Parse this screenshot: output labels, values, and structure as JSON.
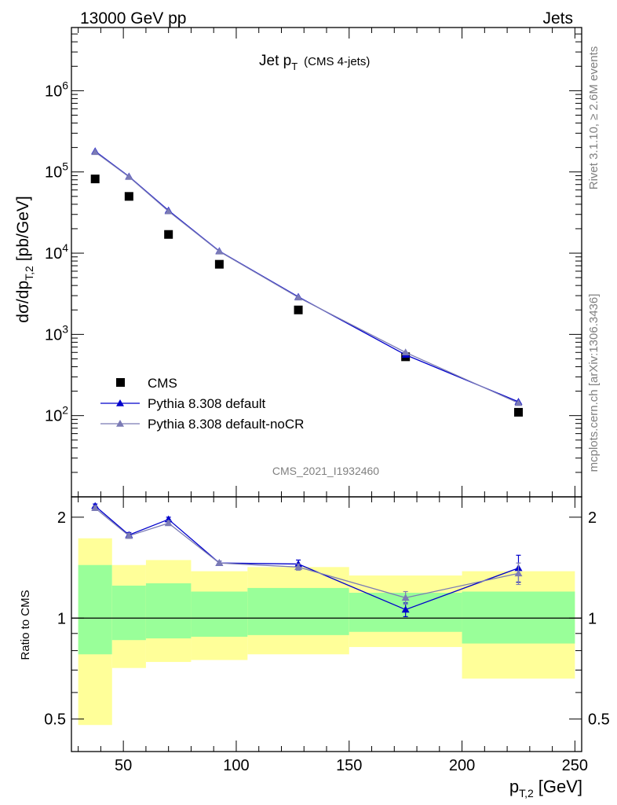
{
  "header": {
    "left": "13000 GeV pp",
    "right": "Jets"
  },
  "plot_title_main": "Jet p",
  "plot_title_sub": "T",
  "plot_title_note": "(CMS 4-jets)",
  "y_label": {
    "main": "dσ/dp",
    "sub": "T,2",
    "unit": "[pb/GeV]"
  },
  "x_label": {
    "main": "p",
    "sub": "T,2",
    "unit": "[GeV]"
  },
  "ratio_label": "Ratio to CMS",
  "side_text": {
    "rivet": "Rivet 3.1.10, ≥ 2.6M events",
    "mcplots": "mcplots.cern.ch [arXiv:1306.3436]"
  },
  "analysis_id": "CMS_2021_I1932460",
  "legend": [
    {
      "label": "CMS",
      "color": "#000000",
      "marker": "square"
    },
    {
      "label": "Pythia 8.308 default",
      "color": "#0000cc",
      "marker": "triangle"
    },
    {
      "label": "Pythia 8.308 default-noCR",
      "color": "#7b7bb5",
      "marker": "triangle"
    }
  ],
  "chart_data": [
    {
      "type": "scatter",
      "panel": "main",
      "xlim": [
        27,
        253
      ],
      "ylim": [
        10,
        6000000
      ],
      "y_scale": "log",
      "x_ticks": [
        50,
        100,
        150,
        200,
        250
      ],
      "y_ticks": [
        {
          "value": 100,
          "base": "10",
          "exp": "2"
        },
        {
          "value": 1000,
          "base": "10",
          "exp": "3"
        },
        {
          "value": 10000,
          "base": "10",
          "exp": "4"
        },
        {
          "value": 100000,
          "base": "10",
          "exp": "5"
        },
        {
          "value": 1000000,
          "base": "10",
          "exp": "6"
        }
      ],
      "bins": [
        [
          30,
          45
        ],
        [
          45,
          60
        ],
        [
          60,
          80
        ],
        [
          80,
          105
        ],
        [
          105,
          150
        ],
        [
          150,
          200
        ],
        [
          200,
          250
        ]
      ],
      "series": [
        {
          "name": "CMS",
          "color": "#000000",
          "x": [
            37.5,
            52.5,
            70,
            92.5,
            127.5,
            175,
            225
          ],
          "y": [
            82000,
            50000,
            17000,
            7300,
            2000,
            530,
            110
          ]
        },
        {
          "name": "Pythia 8.308 default",
          "color": "#0000cc",
          "x": [
            37.5,
            52.5,
            70,
            92.5,
            127.5,
            175,
            225
          ],
          "y": [
            180000,
            88000,
            33500,
            10600,
            2900,
            560,
            148
          ],
          "yerr": [
            3000,
            1500,
            600,
            200,
            60,
            20,
            10
          ]
        },
        {
          "name": "Pythia 8.308 default-noCR",
          "color": "#7b7bb5",
          "x": [
            37.5,
            52.5,
            70,
            92.5,
            127.5,
            175,
            225
          ],
          "y": [
            176000,
            87000,
            32800,
            10500,
            2850,
            600,
            143
          ],
          "yerr": [
            3000,
            1500,
            600,
            200,
            60,
            20,
            10
          ]
        }
      ]
    },
    {
      "type": "scatter",
      "panel": "ratio",
      "ylabel": "Ratio to CMS",
      "xlim": [
        27,
        253
      ],
      "ylim": [
        0.4,
        2.3
      ],
      "y_scale": "log",
      "y_ticks": [
        {
          "value": 0.5,
          "label": "0.5"
        },
        {
          "value": 1,
          "label": "1"
        },
        {
          "value": 2,
          "label": "2"
        }
      ],
      "reference": 1,
      "bands": {
        "inner_color": "#99ff99",
        "outer_color": "#ffff99",
        "bins": [
          {
            "x0": 30,
            "x1": 45,
            "inner": [
              0.78,
              1.44
            ],
            "outer": [
              0.48,
              1.73
            ]
          },
          {
            "x0": 45,
            "x1": 60,
            "inner": [
              0.86,
              1.25
            ],
            "outer": [
              0.71,
              1.44
            ]
          },
          {
            "x0": 60,
            "x1": 80,
            "inner": [
              0.87,
              1.27
            ],
            "outer": [
              0.74,
              1.49
            ]
          },
          {
            "x0": 80,
            "x1": 105,
            "inner": [
              0.88,
              1.2
            ],
            "outer": [
              0.75,
              1.38
            ]
          },
          {
            "x0": 105,
            "x1": 150,
            "inner": [
              0.89,
              1.23
            ],
            "outer": [
              0.78,
              1.42
            ]
          },
          {
            "x0": 150,
            "x1": 200,
            "inner": [
              0.91,
              1.19
            ],
            "outer": [
              0.82,
              1.34
            ]
          },
          {
            "x0": 200,
            "x1": 250,
            "inner": [
              0.84,
              1.2
            ],
            "outer": [
              0.66,
              1.38
            ]
          }
        ]
      },
      "series": [
        {
          "name": "Pythia 8.308 default",
          "color": "#0000cc",
          "x": [
            37.5,
            52.5,
            70,
            92.5,
            127.5,
            175,
            225
          ],
          "y": [
            2.16,
            1.77,
            1.97,
            1.46,
            1.45,
            1.06,
            1.41
          ],
          "yerr": [
            0.03,
            0.03,
            0.03,
            0.02,
            0.04,
            0.05,
            0.13
          ]
        },
        {
          "name": "Pythia 8.308 default-noCR",
          "color": "#7b7bb5",
          "x": [
            37.5,
            52.5,
            70,
            92.5,
            127.5,
            175,
            225
          ],
          "y": [
            2.13,
            1.76,
            1.92,
            1.46,
            1.42,
            1.15,
            1.36
          ],
          "yerr": [
            0.03,
            0.03,
            0.03,
            0.02,
            0.03,
            0.05,
            0.1
          ]
        }
      ]
    }
  ]
}
